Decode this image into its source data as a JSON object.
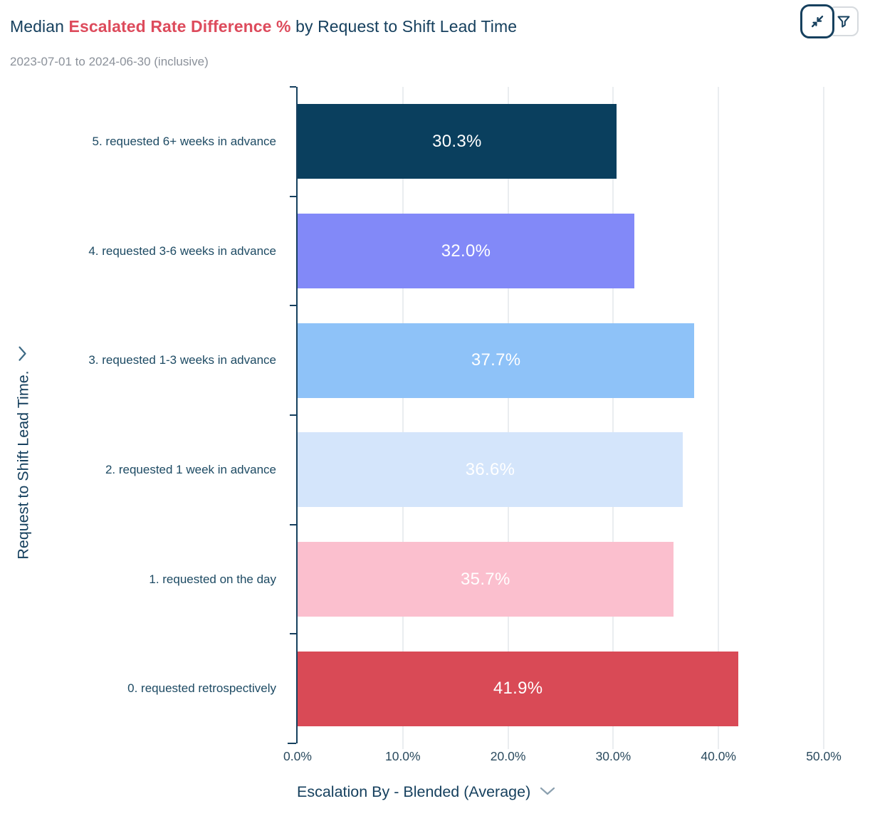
{
  "header": {
    "title_prefix": "Median ",
    "title_highlight": "Escalated Rate Difference %",
    "title_suffix": " by Request to Shift Lead Time",
    "subtitle": "2023-07-01 to 2024-06-30 (inclusive)"
  },
  "toolbar": {
    "collapse_icon": "collapse-arrows-icon",
    "filter_icon": "funnel-icon"
  },
  "chart_data": {
    "type": "bar",
    "orientation": "horizontal",
    "title": "Median Escalated Rate Difference % by Request to Shift Lead Time",
    "subtitle": "2023-07-01 to 2024-06-30 (inclusive)",
    "categories": [
      "5. requested 6+ weeks in advance",
      "4. requested 3-6 weeks in advance",
      "3. requested 1-3 weeks in advance",
      "2. requested 1 week in advance",
      "1. requested on the day",
      "0. requested retrospectively"
    ],
    "values": [
      30.3,
      32.0,
      37.7,
      36.6,
      35.7,
      41.9
    ],
    "value_labels": [
      "30.3%",
      "32.0%",
      "37.7%",
      "36.6%",
      "35.7%",
      "41.9%"
    ],
    "bar_colors": [
      "#0a3f5e",
      "#8289f8",
      "#8ec2f8",
      "#d4e5fb",
      "#fbbfce",
      "#d94a56"
    ],
    "xlabel": "Escalation By - Blended (Average)",
    "ylabel": "Request to Shift Lead Time.",
    "x_ticks": [
      "0.0%",
      "10.0%",
      "20.0%",
      "30.0%",
      "40.0%",
      "50.0%"
    ],
    "xlim": [
      0,
      50
    ],
    "grid": "vertical",
    "legend": "none"
  },
  "colors": {
    "navy_text": "#16405e",
    "red_accent": "#dd4b5c",
    "subtitle_gray": "#8b919a",
    "gridline": "#eaedf0",
    "chevron_gray": "#8ba0af"
  }
}
